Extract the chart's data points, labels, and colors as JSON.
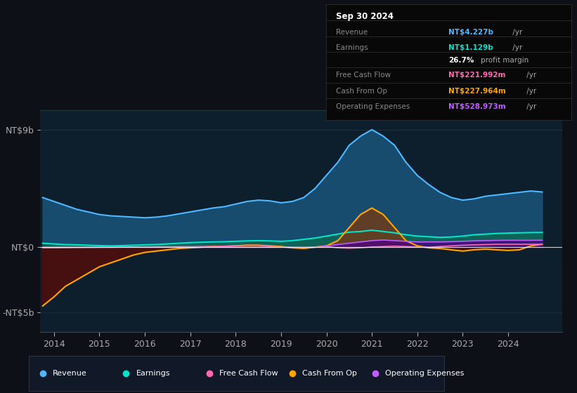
{
  "bg_color": "#0d1117",
  "plot_bg_color": "#0d1f2d",
  "title_box": {
    "date": "Sep 30 2024",
    "rows": [
      {
        "label": "Revenue",
        "value": "NT$4.227b /yr",
        "color": "#4db8ff"
      },
      {
        "label": "Earnings",
        "value": "NT$1.129b /yr",
        "color": "#00e5c9"
      },
      {
        "label": "",
        "value": "26.7% profit margin",
        "color": "#ffffff"
      },
      {
        "label": "Free Cash Flow",
        "value": "NT$221.992m /yr",
        "color": "#ff69b4"
      },
      {
        "label": "Cash From Op",
        "value": "NT$227.964m /yr",
        "color": "#ffa500"
      },
      {
        "label": "Operating Expenses",
        "value": "NT$528.973m /yr",
        "color": "#bf5fff"
      }
    ]
  },
  "yticks": [
    "NT$9b",
    "NT$0",
    "-NT$5b"
  ],
  "ytick_vals": [
    9,
    0,
    -5
  ],
  "ylim": [
    -6.5,
    10.5
  ],
  "xlim": [
    2013.7,
    2025.2
  ],
  "xticks": [
    2014,
    2015,
    2016,
    2017,
    2018,
    2019,
    2020,
    2021,
    2022,
    2023,
    2024
  ],
  "colors": {
    "revenue": "#1a5276",
    "revenue_line": "#4db8ff",
    "earnings": "#0e6655",
    "earnings_line": "#00e5c9",
    "free_cash_flow_line": "#ff69b4",
    "cash_from_op_pos": "#6e3b1a",
    "cash_from_op_neg": "#4a1010",
    "cash_from_op_line": "#ffa500",
    "op_exp_pos": "#4b0082",
    "op_exp_line": "#bf5fff"
  },
  "legend": [
    {
      "label": "Revenue",
      "color": "#4db8ff"
    },
    {
      "label": "Earnings",
      "color": "#00e5c9"
    },
    {
      "label": "Free Cash Flow",
      "color": "#ff69b4"
    },
    {
      "label": "Cash From Op",
      "color": "#ffa500"
    },
    {
      "label": "Operating Expenses",
      "color": "#bf5fff"
    }
  ],
  "years": [
    2013.75,
    2014.0,
    2014.25,
    2014.5,
    2014.75,
    2015.0,
    2015.25,
    2015.5,
    2015.75,
    2016.0,
    2016.25,
    2016.5,
    2016.75,
    2017.0,
    2017.25,
    2017.5,
    2017.75,
    2018.0,
    2018.25,
    2018.5,
    2018.75,
    2019.0,
    2019.25,
    2019.5,
    2019.75,
    2020.0,
    2020.25,
    2020.5,
    2020.75,
    2021.0,
    2021.25,
    2021.5,
    2021.75,
    2022.0,
    2022.25,
    2022.5,
    2022.75,
    2023.0,
    2023.25,
    2023.5,
    2023.75,
    2024.0,
    2024.25,
    2024.5,
    2024.75
  ],
  "revenue": [
    3.8,
    3.5,
    3.2,
    2.9,
    2.7,
    2.5,
    2.4,
    2.35,
    2.3,
    2.25,
    2.3,
    2.4,
    2.55,
    2.7,
    2.85,
    3.0,
    3.1,
    3.3,
    3.5,
    3.6,
    3.55,
    3.4,
    3.5,
    3.8,
    4.5,
    5.5,
    6.5,
    7.8,
    8.5,
    9.0,
    8.5,
    7.8,
    6.5,
    5.5,
    4.8,
    4.2,
    3.8,
    3.6,
    3.7,
    3.9,
    4.0,
    4.1,
    4.2,
    4.3,
    4.227
  ],
  "earnings": [
    0.3,
    0.25,
    0.2,
    0.18,
    0.15,
    0.12,
    0.1,
    0.12,
    0.15,
    0.18,
    0.2,
    0.25,
    0.3,
    0.35,
    0.38,
    0.4,
    0.42,
    0.45,
    0.48,
    0.5,
    0.48,
    0.45,
    0.5,
    0.6,
    0.7,
    0.85,
    1.0,
    1.15,
    1.2,
    1.3,
    1.2,
    1.1,
    0.95,
    0.85,
    0.8,
    0.75,
    0.78,
    0.85,
    0.95,
    1.0,
    1.05,
    1.08,
    1.1,
    1.12,
    1.129
  ],
  "free_cash_flow": [
    -0.05,
    -0.05,
    -0.04,
    -0.03,
    -0.02,
    -0.01,
    -0.01,
    0.01,
    0.02,
    0.02,
    0.03,
    0.03,
    0.04,
    0.04,
    0.05,
    0.05,
    0.08,
    0.12,
    0.15,
    0.15,
    0.05,
    0.02,
    -0.02,
    -0.05,
    0.02,
    0.05,
    -0.05,
    -0.08,
    -0.05,
    0.02,
    0.05,
    0.08,
    0.05,
    0.02,
    0.0,
    0.05,
    0.1,
    0.15,
    0.18,
    0.2,
    0.22,
    0.22,
    0.222,
    0.222,
    0.222
  ],
  "cash_from_op": [
    -4.5,
    -3.8,
    -3.0,
    -2.5,
    -2.0,
    -1.5,
    -1.2,
    -0.9,
    -0.6,
    -0.4,
    -0.3,
    -0.2,
    -0.1,
    -0.05,
    0.0,
    0.05,
    0.05,
    0.1,
    0.15,
    0.15,
    0.1,
    0.05,
    -0.05,
    -0.1,
    0.0,
    0.1,
    0.5,
    1.5,
    2.5,
    3.0,
    2.5,
    1.5,
    0.5,
    0.1,
    -0.05,
    -0.1,
    -0.2,
    -0.3,
    -0.2,
    -0.15,
    -0.2,
    -0.25,
    -0.2,
    0.1,
    0.228
  ],
  "operating_expenses": [
    0.0,
    0.0,
    0.0,
    0.0,
    0.0,
    0.0,
    0.0,
    0.0,
    0.0,
    0.0,
    0.0,
    0.0,
    0.0,
    0.0,
    0.0,
    0.0,
    0.0,
    0.0,
    0.0,
    0.0,
    0.0,
    0.0,
    0.0,
    0.0,
    0.0,
    0.1,
    0.2,
    0.3,
    0.4,
    0.5,
    0.55,
    0.5,
    0.45,
    0.4,
    0.4,
    0.4,
    0.42,
    0.45,
    0.48,
    0.5,
    0.52,
    0.53,
    0.528,
    0.528,
    0.529
  ]
}
